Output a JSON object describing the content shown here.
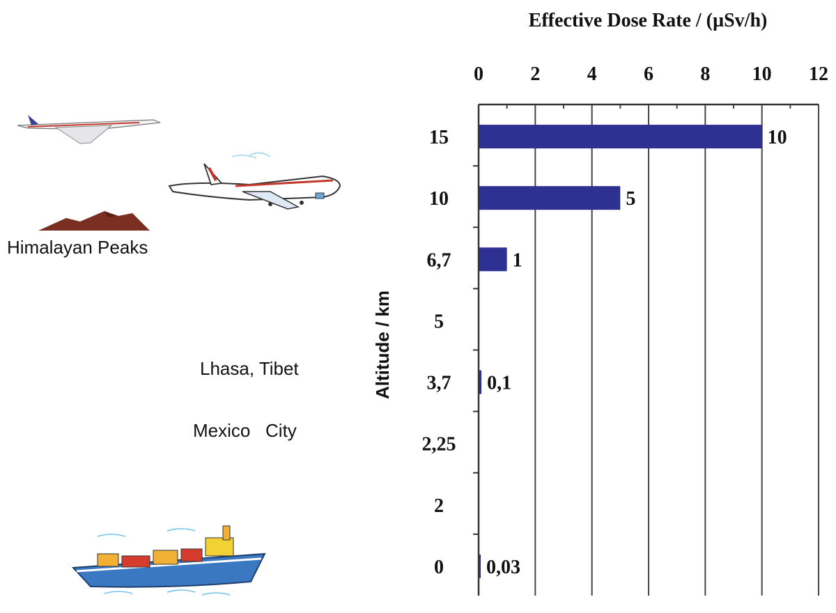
{
  "chart_data": {
    "type": "bar",
    "orientation": "horizontal",
    "title": "",
    "xlabel": "Effective Dose Rate / (µSv/h)",
    "ylabel": "Altitude / km",
    "xlim": [
      0,
      12
    ],
    "x_ticks": [
      "0",
      "2",
      "4",
      "6",
      "8",
      "10",
      "12"
    ],
    "categories": [
      "15",
      "10",
      "6,7",
      "5",
      "3,7",
      "2,25",
      "2",
      "0"
    ],
    "values": [
      10,
      5,
      1,
      null,
      0.1,
      null,
      null,
      0.03
    ],
    "data_labels": [
      "10",
      "5",
      "1",
      "",
      "0,1",
      "",
      "",
      "0,03"
    ],
    "grid": true,
    "bar_color": "#2e3192",
    "axis_position": "top"
  },
  "annotations": {
    "himalayan_peaks": "Himalayan Peaks",
    "lhasa": "Lhasa, Tibet",
    "mexico_city": "Mexico   City"
  },
  "illustrations": {
    "concorde": "supersonic-jet-icon",
    "jumbo_jet": "airliner-icon",
    "mountains": "mountain-peaks-icon",
    "ship": "cargo-ship-icon"
  }
}
